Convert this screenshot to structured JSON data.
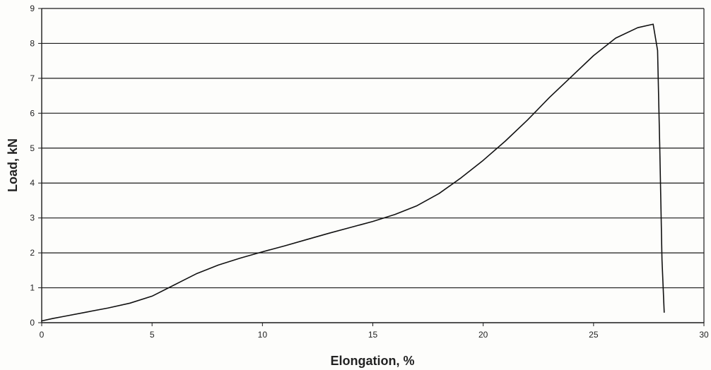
{
  "chart_data": {
    "type": "line",
    "title": "",
    "xlabel": "Elongation, %",
    "ylabel": "Load, kN",
    "xlim": [
      0,
      30
    ],
    "ylim": [
      0,
      9
    ],
    "x_ticks": [
      0,
      5,
      10,
      15,
      20,
      25,
      30
    ],
    "y_ticks": [
      0,
      1,
      2,
      3,
      4,
      5,
      6,
      7,
      8,
      9
    ],
    "grid": "horizontal",
    "legend": "none",
    "series": [
      {
        "x": [
          0,
          0.5,
          1,
          2,
          3,
          4,
          5,
          6,
          7,
          8,
          9,
          10,
          11,
          12,
          13,
          14,
          15,
          16,
          17,
          18,
          19,
          20,
          21,
          22,
          23,
          24,
          25,
          26,
          27,
          27.7,
          27.9,
          28.0,
          28.1,
          28.2
        ],
        "y": [
          0.05,
          0.12,
          0.18,
          0.3,
          0.42,
          0.56,
          0.76,
          1.08,
          1.4,
          1.65,
          1.85,
          2.03,
          2.2,
          2.38,
          2.56,
          2.73,
          2.9,
          3.1,
          3.35,
          3.7,
          4.15,
          4.65,
          5.2,
          5.8,
          6.45,
          7.05,
          7.65,
          8.15,
          8.45,
          8.55,
          7.8,
          5.0,
          1.8,
          0.3
        ],
        "color": "#111111"
      }
    ]
  }
}
